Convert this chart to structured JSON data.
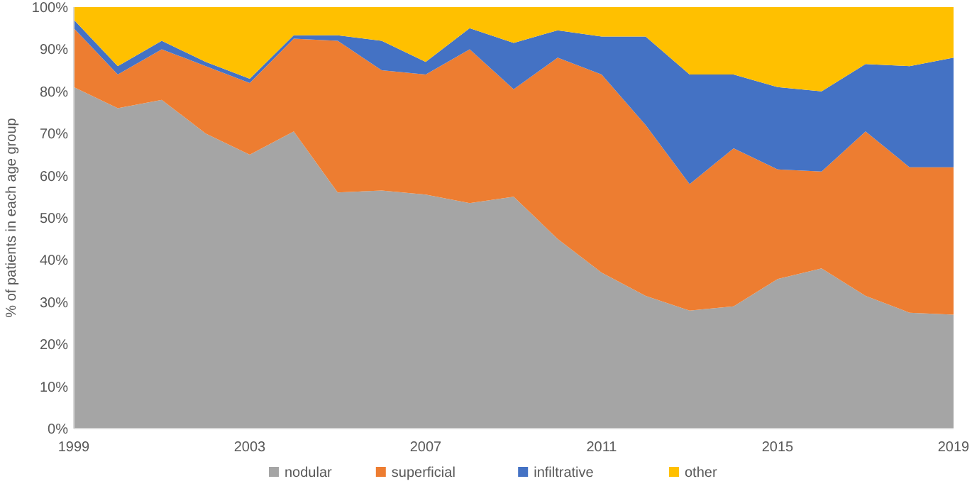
{
  "chart_data": {
    "type": "area",
    "stacked": true,
    "ylabel": "% of patients in each age group",
    "x": [
      1999,
      2000,
      2001,
      2002,
      2003,
      2004,
      2005,
      2006,
      2007,
      2008,
      2009,
      2010,
      2011,
      2012,
      2013,
      2014,
      2015,
      2016,
      2017,
      2018,
      2019
    ],
    "xlim": [
      1999,
      2019
    ],
    "xticks": [
      1999,
      2003,
      2007,
      2011,
      2015,
      2019
    ],
    "ylim": [
      0,
      100
    ],
    "yticks": [
      {
        "value": 0,
        "label": "0%"
      },
      {
        "value": 10,
        "label": "10%"
      },
      {
        "value": 20,
        "label": "20%"
      },
      {
        "value": 30,
        "label": "30%"
      },
      {
        "value": 40,
        "label": "40%"
      },
      {
        "value": 50,
        "label": "50%"
      },
      {
        "value": 60,
        "label": "60%"
      },
      {
        "value": 70,
        "label": "70%"
      },
      {
        "value": 80,
        "label": "80%"
      },
      {
        "value": 90,
        "label": "90%"
      },
      {
        "value": 100,
        "label": "100%"
      }
    ],
    "legend": "bottom",
    "series": [
      {
        "name": "nodular",
        "color": "#a5a5a5",
        "values": [
          81,
          76,
          78,
          70,
          65,
          70.5,
          56,
          56.5,
          55.5,
          53.5,
          55,
          45,
          37,
          31.5,
          28,
          29,
          35.5,
          38,
          31.5,
          27.5,
          27
        ]
      },
      {
        "name": "superficial",
        "color": "#ed7d31",
        "values": [
          14,
          8,
          12,
          16,
          17,
          22,
          36,
          28.5,
          28.5,
          36.5,
          25.5,
          43,
          47,
          40.5,
          30,
          37.5,
          26,
          23,
          39,
          34.5,
          35
        ]
      },
      {
        "name": "infiltrative",
        "color": "#4472c4",
        "values": [
          2,
          2,
          2,
          1,
          1,
          0.8,
          1.3,
          7,
          3,
          5,
          11,
          6.5,
          9,
          21,
          26,
          17.5,
          19.5,
          19,
          16,
          24,
          26
        ]
      },
      {
        "name": "other",
        "color": "#ffc000",
        "values": [
          3,
          14,
          8,
          13,
          17,
          6.7,
          6.7,
          8,
          13,
          5,
          8.5,
          5.5,
          7,
          7,
          16,
          16,
          19,
          20,
          13.5,
          14,
          12
        ]
      }
    ]
  }
}
